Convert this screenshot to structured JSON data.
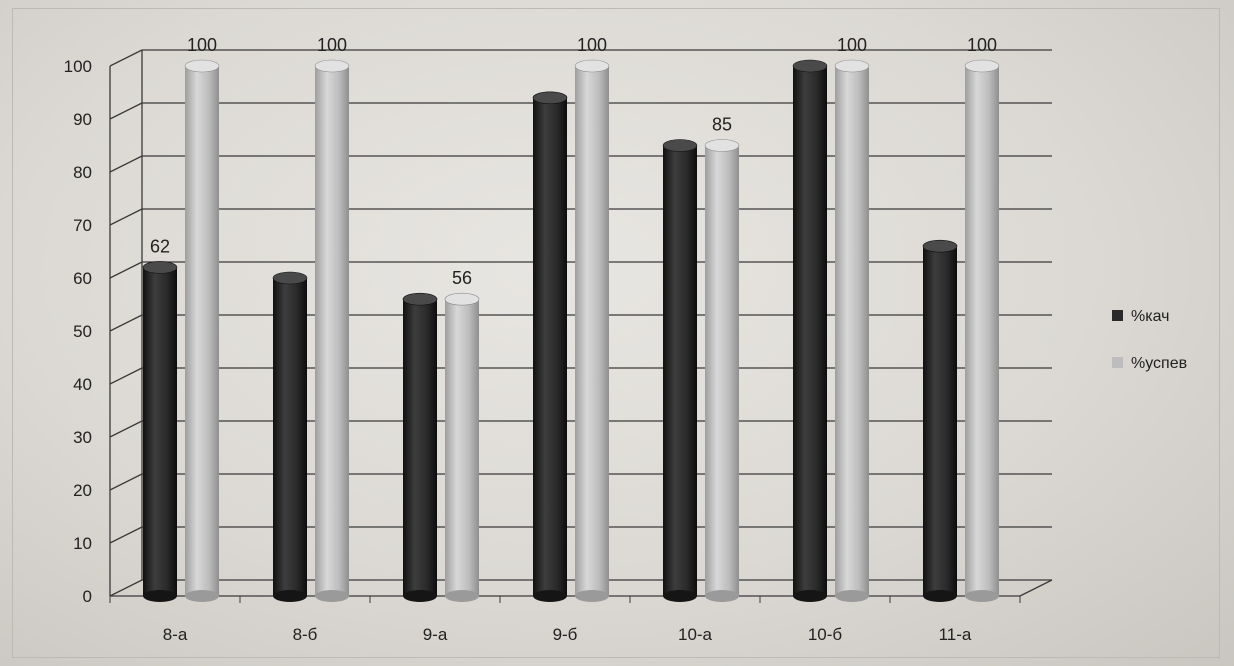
{
  "chart_data": {
    "type": "bar",
    "categories": [
      "8-а",
      "8-б",
      "9-а",
      "9-б",
      "10-а",
      "10-б",
      "11-а"
    ],
    "series": [
      {
        "name": "%кач",
        "values": [
          62,
          60,
          56,
          94,
          85,
          100,
          66
        ],
        "labels": [
          "62",
          "",
          "",
          "",
          "",
          "",
          ""
        ]
      },
      {
        "name": "%успев",
        "values": [
          100,
          100,
          56,
          100,
          85,
          100,
          100
        ],
        "labels": [
          "100",
          "100",
          "56",
          "100",
          "85",
          "100",
          "100"
        ]
      }
    ],
    "ylim": [
      0,
      100
    ],
    "yticks": [
      "0",
      "10",
      "20",
      "30",
      "40",
      "50",
      "60",
      "70",
      "80",
      "90",
      "100"
    ],
    "grid": true,
    "legend_position": "right",
    "colors": {
      "series_1": "#2a2a2a",
      "series_2": "#bdbdbd"
    }
  }
}
